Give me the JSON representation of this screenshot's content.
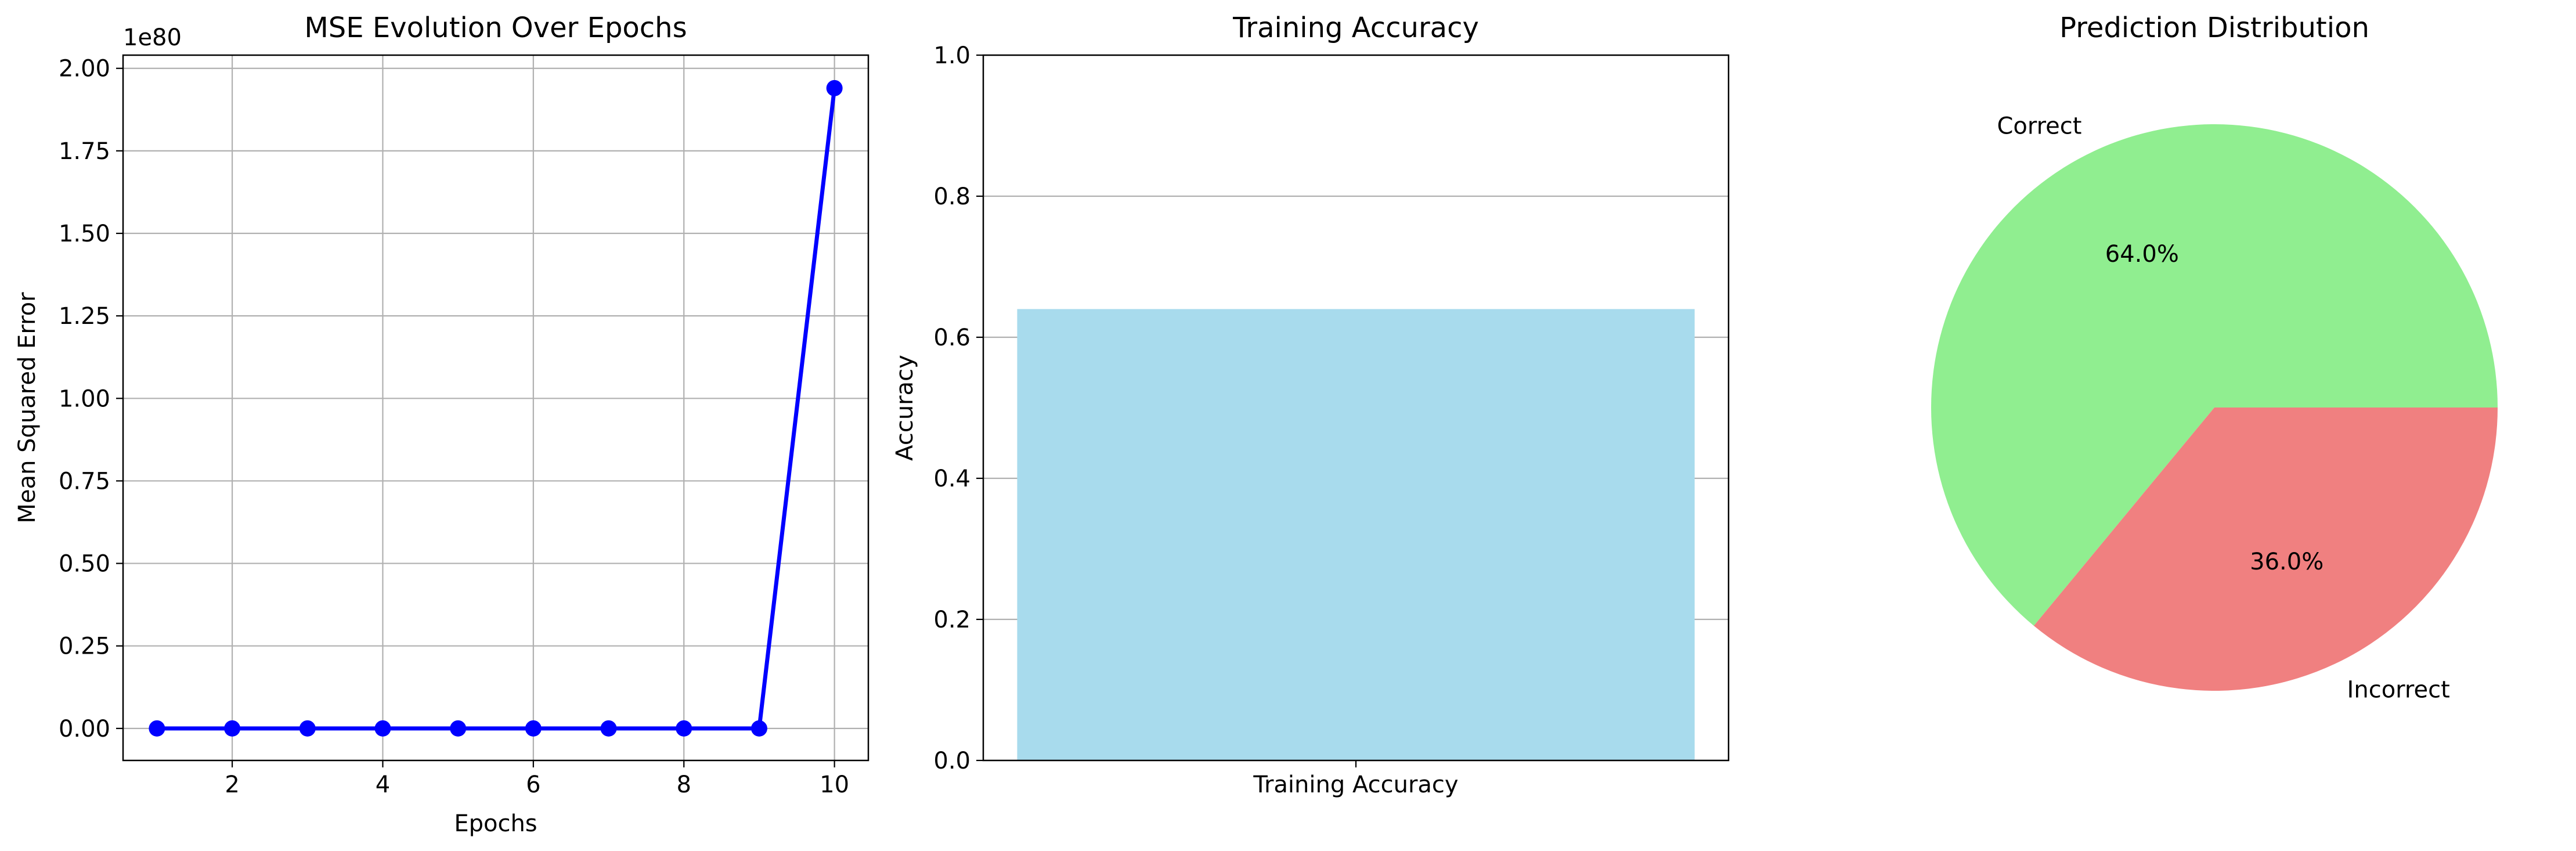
{
  "chart_data": [
    {
      "type": "line",
      "title": "MSE Evolution Over Epochs",
      "xlabel": "Epochs",
      "ylabel": "Mean Squared Error",
      "y_offset_text": "1e80",
      "xlim": [
        0.55,
        10.45
      ],
      "ylim": [
        -0.097,
        2.04
      ],
      "x_ticks": [
        2,
        4,
        6,
        8,
        10
      ],
      "x_tick_labels": [
        "2",
        "4",
        "6",
        "8",
        "10"
      ],
      "y_ticks": [
        0,
        0.25,
        0.5,
        0.75,
        1.0,
        1.25,
        1.5,
        1.75,
        2.0
      ],
      "y_tick_labels": [
        "0.00",
        "0.25",
        "0.50",
        "0.75",
        "1.00",
        "1.25",
        "1.50",
        "1.75",
        "2.00"
      ],
      "grid": true,
      "series": [
        {
          "color": "#0000ff",
          "marker": "circle",
          "x": [
            1,
            2,
            3,
            4,
            5,
            6,
            7,
            8,
            9,
            10
          ],
          "y": [
            0,
            0,
            0,
            0,
            0,
            0,
            0,
            0,
            0,
            1.94
          ]
        }
      ]
    },
    {
      "type": "bar",
      "title": "Training Accuracy",
      "xlabel": "",
      "ylabel": "Accuracy",
      "categories": [
        "Training Accuracy"
      ],
      "values": [
        0.64
      ],
      "ylim": [
        0,
        1.0
      ],
      "y_ticks": [
        0,
        0.2,
        0.4,
        0.6,
        0.8,
        1.0
      ],
      "y_tick_labels": [
        "0.0",
        "0.2",
        "0.4",
        "0.6",
        "0.8",
        "1.0"
      ],
      "grid": "y",
      "color": "#a8dbed"
    },
    {
      "type": "pie",
      "title": "Prediction Distribution",
      "labels": [
        "Correct",
        "Incorrect"
      ],
      "values": [
        64.0,
        36.0
      ],
      "pct_labels": [
        "64.0%",
        "36.0%"
      ],
      "colors": [
        "#90ee90",
        "#f08080"
      ]
    }
  ]
}
